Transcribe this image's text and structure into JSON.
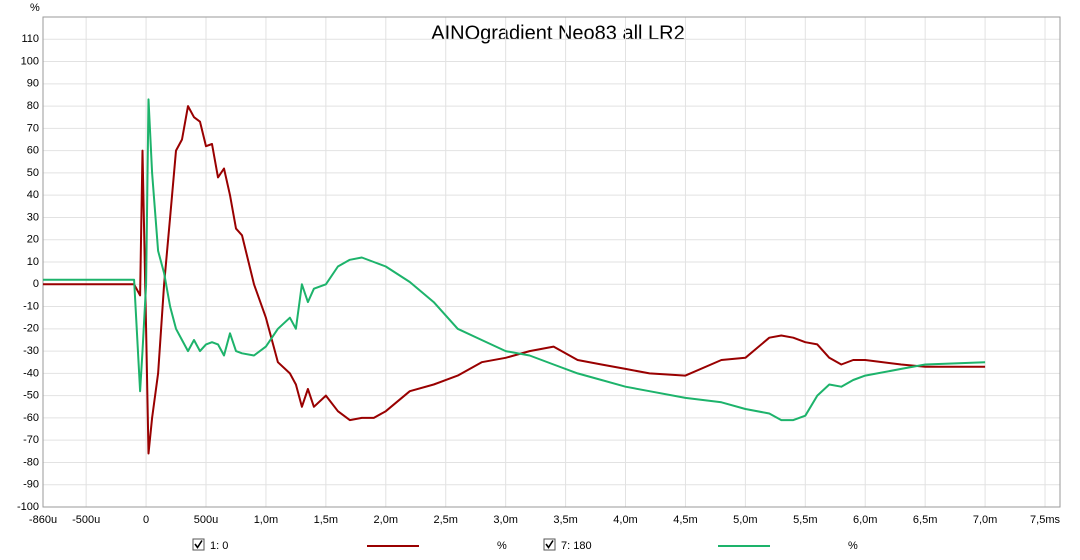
{
  "chart_data": {
    "type": "line",
    "title": "AINOgradient Neo83 all LR2",
    "y_unit": "%",
    "x": [
      -0.86,
      -0.2,
      -0.1,
      -0.05,
      -0.03,
      0,
      0.02,
      0.05,
      0.1,
      0.15,
      0.2,
      0.25,
      0.3,
      0.35,
      0.4,
      0.45,
      0.5,
      0.55,
      0.6,
      0.65,
      0.7,
      0.75,
      0.8,
      0.9,
      1.0,
      1.1,
      1.2,
      1.25,
      1.3,
      1.35,
      1.4,
      1.5,
      1.6,
      1.7,
      1.8,
      1.9,
      2.0,
      2.2,
      2.4,
      2.6,
      2.8,
      3.0,
      3.2,
      3.4,
      3.6,
      3.8,
      4.0,
      4.2,
      4.5,
      4.8,
      5.0,
      5.2,
      5.3,
      5.4,
      5.5,
      5.6,
      5.7,
      5.8,
      5.9,
      6.0,
      6.3,
      6.5,
      7.0
    ],
    "series": [
      {
        "name": "1: 0",
        "color": "#990000",
        "values": [
          0,
          0,
          0,
          -5,
          60,
          -20,
          -76,
          -60,
          -40,
          0,
          30,
          60,
          65,
          80,
          75,
          73,
          62,
          63,
          48,
          52,
          40,
          25,
          22,
          0,
          -15,
          -35,
          -40,
          -45,
          -55,
          -47,
          -55,
          -50,
          -57,
          -61,
          -60,
          -60,
          -57,
          -48,
          -45,
          -41,
          -35,
          -33,
          -30,
          -28,
          -34,
          -36,
          -38,
          -40,
          -41,
          -34,
          -33,
          -24,
          -23,
          -24,
          -26,
          -27,
          -33,
          -36,
          -34,
          -34,
          -36,
          -37,
          -37
        ]
      },
      {
        "name": "7: 180",
        "color": "#1db36b",
        "values": [
          2,
          2,
          2,
          -48,
          -30,
          0,
          83,
          50,
          15,
          5,
          -10,
          -20,
          -25,
          -30,
          -25,
          -30,
          -27,
          -26,
          -27,
          -32,
          -22,
          -30,
          -31,
          -32,
          -28,
          -20,
          -15,
          -20,
          0,
          -8,
          -2,
          0,
          8,
          11,
          12,
          10,
          8,
          1,
          -8,
          -20,
          -25,
          -30,
          -32,
          -36,
          -40,
          -43,
          -46,
          -48,
          -51,
          -53,
          -56,
          -58,
          -61,
          -61,
          -59,
          -50,
          -45,
          -46,
          -43,
          -41,
          -38,
          -36,
          -35
        ]
      }
    ],
    "xlim": [
      -0.86,
      7.625
    ],
    "xticks": [
      {
        "value": -0.86,
        "label": "-860u"
      },
      {
        "value": -0.5,
        "label": "-500u"
      },
      0,
      {
        "value": 0.5,
        "label": "500u"
      },
      {
        "value": 1.0,
        "label": "1,0m"
      },
      {
        "value": 1.5,
        "label": "1,5m"
      },
      {
        "value": 2.0,
        "label": "2,0m"
      },
      {
        "value": 2.5,
        "label": "2,5m"
      },
      {
        "value": 3.0,
        "label": "3,0m"
      },
      {
        "value": 3.5,
        "label": "3,5m"
      },
      {
        "value": 4.0,
        "label": "4,0m"
      },
      {
        "value": 4.5,
        "label": "4,5m"
      },
      {
        "value": 5.0,
        "label": "5,0m"
      },
      {
        "value": 5.5,
        "label": "5,5m"
      },
      {
        "value": 6.0,
        "label": "6,0m"
      },
      {
        "value": 6.5,
        "label": "6,5m"
      },
      {
        "value": 7.0,
        "label": "7,0m"
      },
      {
        "value": 7.5,
        "label": "7,5ms"
      }
    ],
    "ylim": [
      -100,
      120
    ],
    "yticks": [
      -100,
      -90,
      -80,
      -70,
      -60,
      -50,
      -40,
      -30,
      -20,
      -10,
      0,
      10,
      20,
      30,
      40,
      50,
      60,
      70,
      80,
      90,
      100,
      110
    ],
    "grid": true
  }
}
